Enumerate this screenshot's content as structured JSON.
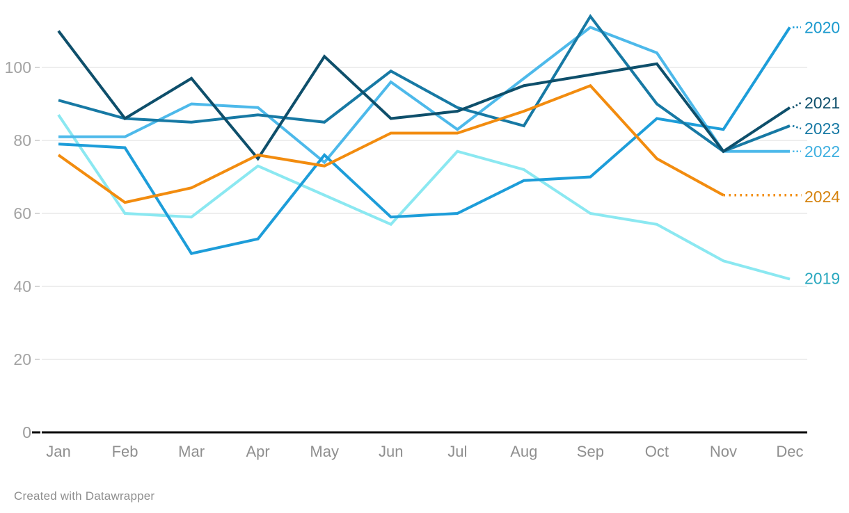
{
  "chart_data": {
    "type": "line",
    "title": "",
    "xlabel": "",
    "ylabel": "",
    "categories": [
      "Jan",
      "Feb",
      "Mar",
      "Apr",
      "May",
      "Jun",
      "Jul",
      "Aug",
      "Sep",
      "Oct",
      "Nov",
      "Dec"
    ],
    "y_ticks": [
      0,
      20,
      40,
      60,
      80,
      100
    ],
    "ylim": [
      0,
      118
    ],
    "grid": true,
    "legend_position": "right-edge-labels",
    "series": [
      {
        "name": "2019",
        "color": "#8be8f1",
        "label_color": "#2aa8bf",
        "values": [
          87,
          60,
          59,
          73,
          65,
          57,
          77,
          72,
          60,
          57,
          47,
          42
        ]
      },
      {
        "name": "2020",
        "color": "#1d9dd9",
        "label_color": "#1b9ace",
        "values": [
          79,
          78,
          49,
          53,
          76,
          59,
          60,
          69,
          70,
          86,
          83,
          111
        ]
      },
      {
        "name": "2021",
        "color": "#0e4f6b",
        "label_color": "#0e4f6b",
        "values": [
          110,
          86,
          97,
          75,
          103,
          86,
          88,
          95,
          98,
          101,
          77,
          89
        ]
      },
      {
        "name": "2022",
        "color": "#4db9ea",
        "label_color": "#3eafe0",
        "values": [
          81,
          81,
          90,
          89,
          74,
          96,
          83,
          97,
          111,
          104,
          77,
          77
        ]
      },
      {
        "name": "2023",
        "color": "#1779a4",
        "label_color": "#1779a4",
        "values": [
          91,
          86,
          85,
          87,
          85,
          99,
          89,
          84,
          114,
          90,
          77,
          84
        ]
      },
      {
        "name": "2024",
        "color": "#f28c0f",
        "label_color": "#d5830f",
        "values": [
          76,
          63,
          67,
          76,
          73,
          82,
          82,
          88,
          95,
          75,
          65,
          65
        ],
        "dashed_from_index": 10,
        "dashed_extension": true
      }
    ]
  },
  "footer": {
    "credit": "Created with Datawrapper"
  }
}
